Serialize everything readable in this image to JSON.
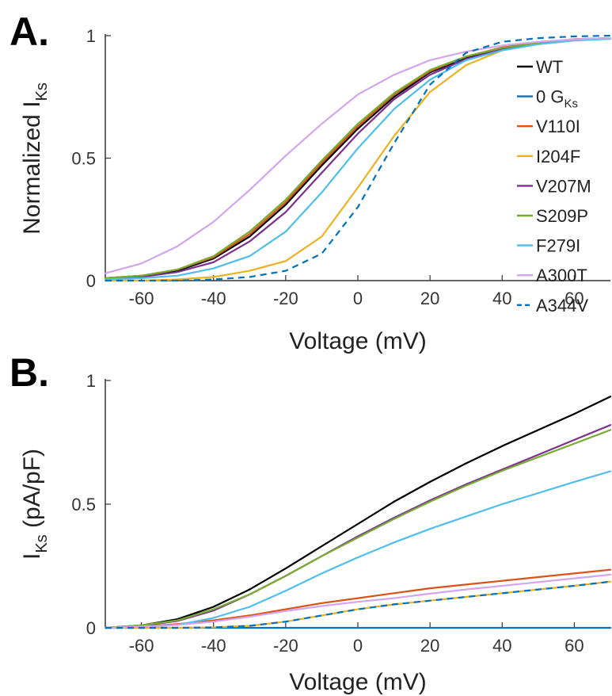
{
  "chart_data": [
    {
      "type": "line",
      "panel_label": "A.",
      "ylabel": {
        "main": "Normalized I",
        "sub": "Ks"
      },
      "xlabel": "Voltage (mV)",
      "xlim": [
        -70,
        70
      ],
      "ylim": [
        0,
        1
      ],
      "xticks": [
        -60,
        -40,
        -20,
        0,
        20,
        40,
        60
      ],
      "yticks": [
        0,
        0.5,
        1
      ],
      "ytick_labels": [
        "0",
        "0.5",
        "1"
      ],
      "grid": false,
      "legend_placement": "right",
      "x": [
        -70,
        -60,
        -50,
        -40,
        -30,
        -20,
        -10,
        0,
        10,
        20,
        30,
        40,
        50,
        60,
        70
      ],
      "series": [
        {
          "name": "WT",
          "color": "#000000",
          "dashed": false,
          "values": [
            0.01,
            0.02,
            0.04,
            0.09,
            0.18,
            0.31,
            0.47,
            0.62,
            0.75,
            0.85,
            0.91,
            0.95,
            0.97,
            0.985,
            0.99
          ]
        },
        {
          "name": "0 G",
          "name_sub": "Ks",
          "color": "#0072BD",
          "dashed": false,
          "in_plot": false,
          "values": [
            0,
            0,
            0,
            0,
            0,
            0,
            0,
            0,
            0,
            0,
            0,
            0,
            0,
            0,
            0
          ]
        },
        {
          "name": "V110I",
          "color": "#D95319",
          "dashed": false,
          "values": [
            0.01,
            0.02,
            0.045,
            0.095,
            0.19,
            0.32,
            0.48,
            0.63,
            0.76,
            0.855,
            0.915,
            0.952,
            0.972,
            0.986,
            0.99
          ]
        },
        {
          "name": "I204F",
          "color": "#EDB120",
          "dashed": false,
          "values": [
            0.0,
            0.0,
            0.005,
            0.015,
            0.04,
            0.08,
            0.18,
            0.38,
            0.59,
            0.77,
            0.88,
            0.94,
            0.97,
            0.985,
            0.99
          ]
        },
        {
          "name": "V207M",
          "color": "#7E2F8E",
          "dashed": false,
          "values": [
            0.005,
            0.015,
            0.035,
            0.075,
            0.16,
            0.28,
            0.44,
            0.6,
            0.74,
            0.84,
            0.905,
            0.945,
            0.968,
            0.982,
            0.988
          ]
        },
        {
          "name": "S209P",
          "color": "#77AC30",
          "dashed": false,
          "values": [
            0.01,
            0.02,
            0.045,
            0.1,
            0.2,
            0.33,
            0.49,
            0.64,
            0.765,
            0.86,
            0.915,
            0.95,
            0.97,
            0.983,
            0.988
          ]
        },
        {
          "name": "F279I",
          "color": "#4DBEEE",
          "dashed": false,
          "values": [
            0.005,
            0.01,
            0.02,
            0.05,
            0.1,
            0.2,
            0.36,
            0.54,
            0.7,
            0.82,
            0.9,
            0.94,
            0.965,
            0.98,
            0.987
          ]
        },
        {
          "name": "A300T",
          "color": "#D2A5EE",
          "dashed": false,
          "values": [
            0.03,
            0.07,
            0.14,
            0.24,
            0.37,
            0.51,
            0.64,
            0.76,
            0.84,
            0.9,
            0.935,
            0.96,
            0.975,
            0.985,
            0.99
          ]
        },
        {
          "name": "A344V",
          "color": "#0072BD",
          "dashed": true,
          "values": [
            0.0,
            0.0,
            0.0,
            0.005,
            0.015,
            0.04,
            0.11,
            0.3,
            0.56,
            0.8,
            0.93,
            0.975,
            0.99,
            0.997,
            1.0
          ]
        }
      ]
    },
    {
      "type": "line",
      "panel_label": "B.",
      "ylabel": {
        "main": "I",
        "sub": "Ks",
        "unit": " (pA/pF)"
      },
      "xlabel": "Voltage (mV)",
      "xlim": [
        -70,
        70
      ],
      "ylim": [
        0,
        1
      ],
      "xticks": [
        -60,
        -40,
        -20,
        0,
        20,
        40,
        60
      ],
      "yticks": [
        0,
        0.5,
        1
      ],
      "ytick_labels": [
        "0",
        "0.5",
        "1"
      ],
      "grid": false,
      "x": [
        -70,
        -60,
        -50,
        -40,
        -30,
        -20,
        -10,
        0,
        10,
        20,
        30,
        40,
        50,
        60,
        70
      ],
      "series": [
        {
          "name": "WT",
          "color": "#000000",
          "dashed": false,
          "values": [
            0,
            0.01,
            0.035,
            0.085,
            0.155,
            0.24,
            0.33,
            0.42,
            0.51,
            0.59,
            0.665,
            0.735,
            0.8,
            0.865,
            0.935
          ]
        },
        {
          "name": "0 GKs",
          "color": "#0072BD",
          "dashed": false,
          "values": [
            0,
            0,
            0,
            0,
            0,
            0,
            0,
            0,
            0,
            0,
            0,
            0,
            0,
            0,
            0
          ]
        },
        {
          "name": "V110I",
          "color": "#D95319",
          "dashed": false,
          "values": [
            0,
            0.005,
            0.015,
            0.03,
            0.05,
            0.075,
            0.1,
            0.12,
            0.14,
            0.16,
            0.175,
            0.19,
            0.205,
            0.22,
            0.235
          ]
        },
        {
          "name": "I204F",
          "color": "#EDB120",
          "dashed": false,
          "values": [
            0,
            0,
            0,
            0.002,
            0.008,
            0.025,
            0.05,
            0.075,
            0.095,
            0.11,
            0.125,
            0.14,
            0.155,
            0.17,
            0.187
          ]
        },
        {
          "name": "V207M",
          "color": "#7E2F8E",
          "dashed": false,
          "values": [
            0,
            0.008,
            0.028,
            0.07,
            0.135,
            0.21,
            0.29,
            0.37,
            0.445,
            0.515,
            0.58,
            0.64,
            0.7,
            0.76,
            0.82
          ]
        },
        {
          "name": "S209P",
          "color": "#77AC30",
          "dashed": false,
          "values": [
            0,
            0.01,
            0.03,
            0.075,
            0.135,
            0.21,
            0.29,
            0.365,
            0.44,
            0.51,
            0.575,
            0.635,
            0.69,
            0.745,
            0.8
          ]
        },
        {
          "name": "F279I",
          "color": "#4DBEEE",
          "dashed": false,
          "values": [
            0,
            0.004,
            0.012,
            0.04,
            0.085,
            0.15,
            0.22,
            0.285,
            0.345,
            0.4,
            0.45,
            0.5,
            0.545,
            0.59,
            0.633
          ]
        },
        {
          "name": "A300T",
          "color": "#D2A5EE",
          "dashed": false,
          "values": [
            0,
            0.005,
            0.012,
            0.025,
            0.045,
            0.068,
            0.088,
            0.105,
            0.12,
            0.138,
            0.155,
            0.17,
            0.185,
            0.2,
            0.215
          ]
        },
        {
          "name": "A344V",
          "color": "#0072BD",
          "dashed": true,
          "values": [
            0,
            0,
            0,
            0.002,
            0.008,
            0.025,
            0.05,
            0.075,
            0.095,
            0.11,
            0.125,
            0.14,
            0.155,
            0.17,
            0.187
          ]
        }
      ]
    }
  ]
}
